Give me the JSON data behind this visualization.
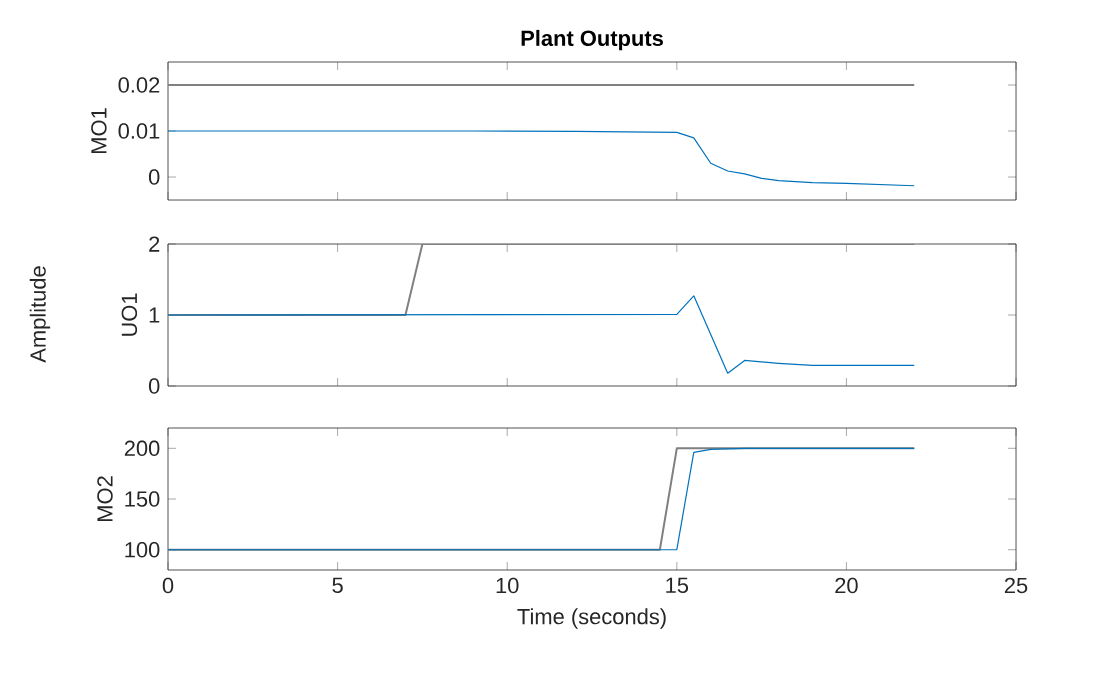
{
  "chart_data": [
    {
      "type": "line",
      "title": "Plant Outputs",
      "ylabel": "MO1",
      "xlim": [
        0,
        25
      ],
      "xticks": [
        0,
        5,
        10,
        15,
        20,
        25
      ],
      "ylim": [
        -0.005,
        0.025
      ],
      "yticks": [
        0,
        0.01,
        0.02
      ],
      "tick_labels": "y",
      "series": [
        {
          "color": "#808080",
          "x": [
            0,
            22
          ],
          "values": [
            0.02,
            0.02
          ]
        },
        {
          "color": "#0072bd",
          "x": [
            0,
            9,
            12,
            15,
            15.5,
            16,
            16.5,
            17,
            17.5,
            18,
            19,
            20,
            22
          ],
          "values": [
            0.01,
            0.01,
            0.0099,
            0.0097,
            0.0085,
            0.003,
            0.0013,
            0.0007,
            -0.0003,
            -0.0008,
            -0.0012,
            -0.0014,
            -0.0019
          ]
        }
      ]
    },
    {
      "type": "line",
      "ylabel": "UO1",
      "annotations": [
        "Amplitude"
      ],
      "xlim": [
        0,
        25
      ],
      "xticks": [
        0,
        5,
        10,
        15,
        20,
        25
      ],
      "ylim": [
        0,
        2
      ],
      "yticks": [
        0,
        1,
        2
      ],
      "tick_labels": "y",
      "series": [
        {
          "color": "#808080",
          "x": [
            0,
            7,
            7.5,
            22
          ],
          "values": [
            1,
            1,
            2,
            2
          ]
        },
        {
          "color": "#0072bd",
          "x": [
            0,
            15,
            15.5,
            16.5,
            17,
            18,
            19,
            22
          ],
          "values": [
            1,
            1.01,
            1.27,
            0.18,
            0.36,
            0.32,
            0.29,
            0.29
          ]
        }
      ]
    },
    {
      "type": "line",
      "ylabel": "MO2",
      "xlabel": "Time (seconds)",
      "xlim": [
        0,
        25
      ],
      "xticks": [
        0,
        5,
        10,
        15,
        20,
        25
      ],
      "ylim": [
        80,
        220
      ],
      "yticks": [
        100,
        150,
        200
      ],
      "series": [
        {
          "color": "#808080",
          "x": [
            0,
            14.5,
            15,
            22
          ],
          "values": [
            100,
            100,
            200,
            200
          ]
        },
        {
          "color": "#0072bd",
          "x": [
            0,
            15,
            15.5,
            16,
            17,
            22
          ],
          "values": [
            100,
            100,
            196,
            199,
            200,
            200
          ]
        }
      ]
    }
  ]
}
